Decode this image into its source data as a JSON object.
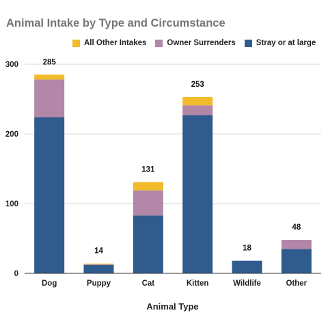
{
  "chart_data": {
    "type": "bar",
    "stacked": true,
    "title": "Animal Intake by Type and Circumstance",
    "xlabel": "Animal Type",
    "ylabel": "",
    "ylim": [
      0,
      300
    ],
    "yticks": [
      0,
      100,
      200,
      300
    ],
    "grid": true,
    "legend_position": "top",
    "categories": [
      "Dog",
      "Puppy",
      "Cat",
      "Kitten",
      "Wildlife",
      "Other"
    ],
    "series": [
      {
        "name": "Stray or at large",
        "color": "#2f5b8d",
        "values": [
          224,
          12,
          83,
          227,
          18,
          35
        ]
      },
      {
        "name": "Owner Surrenders",
        "color": "#b387a8",
        "values": [
          54,
          1,
          36,
          14,
          0,
          13
        ]
      },
      {
        "name": "All Other Intakes",
        "color": "#f1bb2b",
        "values": [
          7,
          1,
          12,
          12,
          0,
          0
        ]
      }
    ],
    "legend_order": [
      "All Other Intakes",
      "Owner Surrenders",
      "Stray or at large"
    ],
    "totals": [
      285,
      14,
      131,
      253,
      18,
      48
    ]
  }
}
